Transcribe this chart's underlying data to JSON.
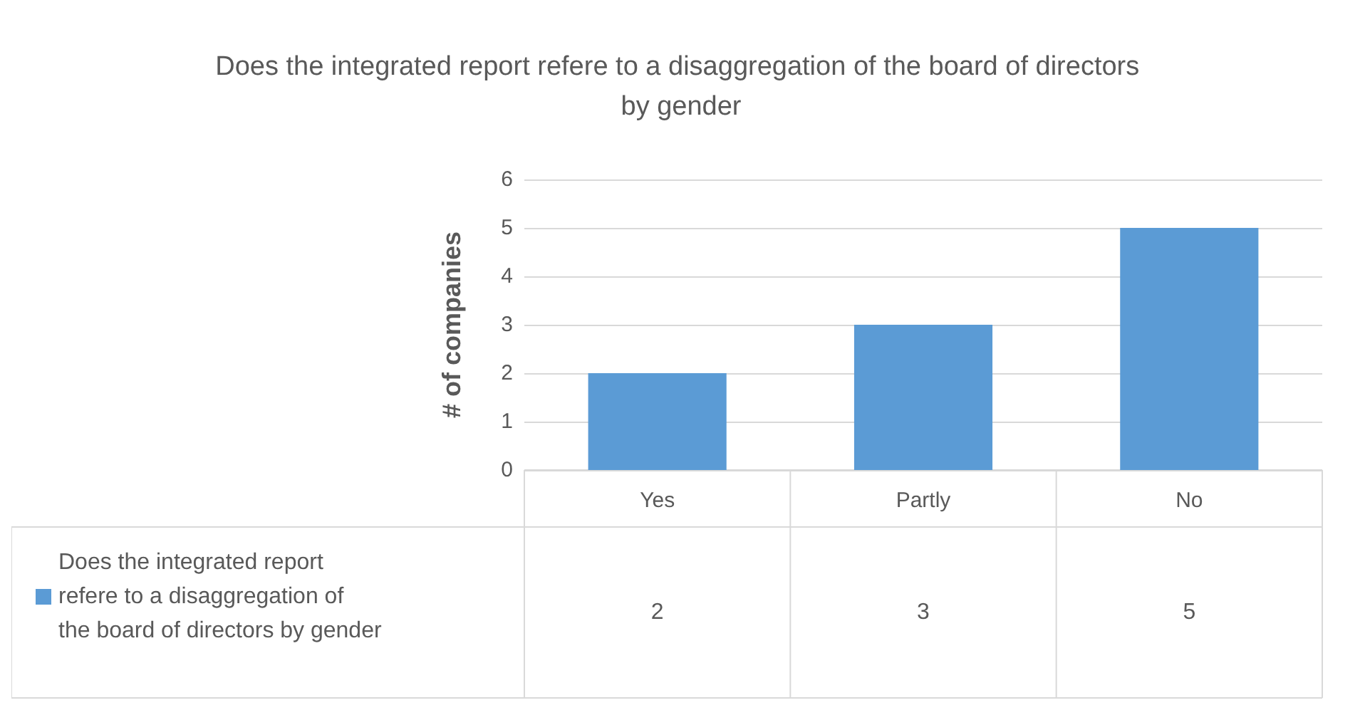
{
  "chart_data": {
    "type": "bar",
    "title": "Does the integrated report refere to a disaggregation of the board of directors by gender",
    "ylabel": "# of companies",
    "categories": [
      "Yes",
      "Partly",
      "No"
    ],
    "series": [
      {
        "name": "Does the integrated report refere to a disaggregation of the board of directors by gender",
        "color": "#5b9bd5",
        "values": [
          2,
          3,
          5
        ]
      }
    ],
    "ylim": [
      0,
      6
    ],
    "yticks": [
      0,
      1,
      2,
      3,
      4,
      5,
      6
    ],
    "grid": "y",
    "legend": "bottom left",
    "data_labels": true
  }
}
